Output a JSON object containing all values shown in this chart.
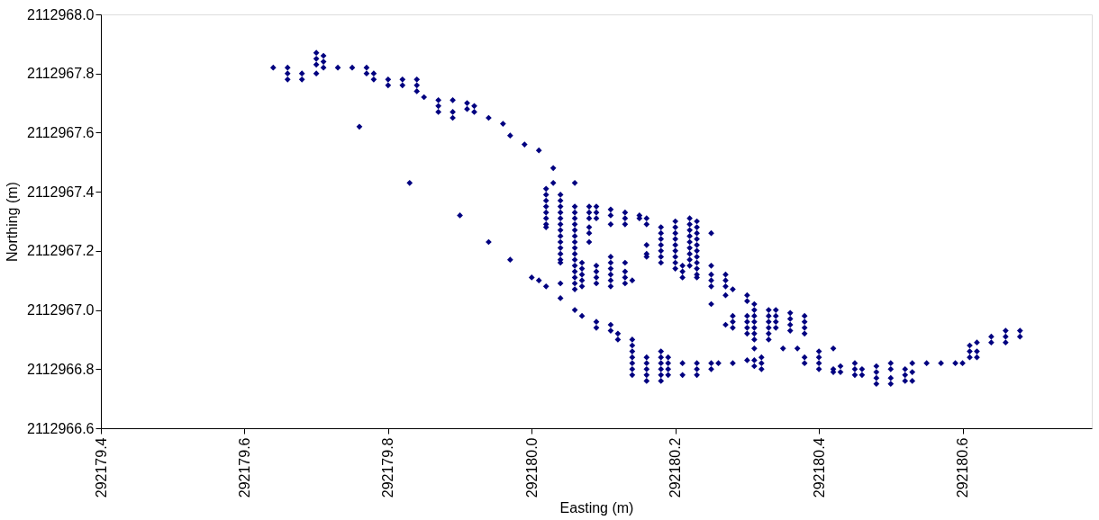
{
  "chart_data": {
    "type": "scatter",
    "xlabel": "Easting (m)",
    "ylabel": "Northing (m)",
    "xlim": [
      292179.4,
      292180.78
    ],
    "xticks": [
      292179.4,
      292179.6,
      292179.8,
      {
        "value": 292180,
        "label": "292180.0"
      },
      292180.2,
      292180.4,
      292180.6
    ],
    "ylim": [
      2112966.6,
      2112968.0
    ],
    "yticks": [
      {
        "value": 2112966.6,
        "label": "2112966.6"
      },
      {
        "value": 2112966.8,
        "label": "2112966.8"
      },
      {
        "value": 2112967,
        "label": "2112967.0"
      },
      {
        "value": 2112967.2,
        "label": "2112967.2"
      },
      {
        "value": 2112967.4,
        "label": "2112967.4"
      },
      {
        "value": 2112967.6,
        "label": "2112967.6"
      },
      {
        "value": 2112967.8,
        "label": "2112967.8"
      },
      {
        "value": 2112968,
        "label": "2112968.0"
      }
    ],
    "grid": false,
    "marker": "diamond",
    "series": [
      {
        "color": "#000080",
        "x": [
          292179.64,
          292179.66,
          292179.66,
          292179.66,
          292179.68,
          292179.68,
          292179.7,
          292179.7,
          292179.7,
          292179.7,
          292179.71,
          292179.71,
          292179.71,
          292179.73,
          292179.75,
          292179.76,
          292179.77,
          292179.77,
          292179.78,
          292179.78,
          292179.8,
          292179.8,
          292179.82,
          292179.82,
          292179.83,
          292179.84,
          292179.84,
          292179.84,
          292179.85,
          292179.87,
          292179.87,
          292179.87,
          292179.89,
          292179.89,
          292179.89,
          292179.9,
          292179.91,
          292179.91,
          292179.92,
          292179.92,
          292179.94,
          292179.94,
          292179.96,
          292179.97,
          292179.97,
          292179.99,
          292180.0,
          292180.01,
          292180.01,
          292180.02,
          292180.02,
          292180.02,
          292180.02,
          292180.02,
          292180.02,
          292180.02,
          292180.02,
          292180.02,
          292180.03,
          292180.03,
          292180.04,
          292180.04,
          292180.04,
          292180.04,
          292180.04,
          292180.04,
          292180.04,
          292180.04,
          292180.04,
          292180.04,
          292180.04,
          292180.04,
          292180.04,
          292180.04,
          292180.04,
          292180.06,
          292180.06,
          292180.06,
          292180.06,
          292180.06,
          292180.06,
          292180.06,
          292180.06,
          292180.06,
          292180.06,
          292180.06,
          292180.06,
          292180.06,
          292180.06,
          292180.06,
          292180.06,
          292180.06,
          292180.07,
          292180.07,
          292180.07,
          292180.07,
          292180.07,
          292180.07,
          292180.08,
          292180.08,
          292180.08,
          292180.08,
          292180.08,
          292180.08,
          292180.09,
          292180.09,
          292180.09,
          292180.09,
          292180.09,
          292180.09,
          292180.09,
          292180.09,
          292180.09,
          292180.11,
          292180.11,
          292180.11,
          292180.11,
          292180.11,
          292180.11,
          292180.11,
          292180.11,
          292180.11,
          292180.11,
          292180.11,
          292180.12,
          292180.12,
          292180.13,
          292180.13,
          292180.13,
          292180.13,
          292180.13,
          292180.13,
          292180.13,
          292180.14,
          292180.14,
          292180.14,
          292180.14,
          292180.14,
          292180.14,
          292180.14,
          292180.14,
          292180.15,
          292180.15,
          292180.16,
          292180.16,
          292180.16,
          292180.16,
          292180.16,
          292180.16,
          292180.16,
          292180.16,
          292180.16,
          292180.16,
          292180.18,
          292180.18,
          292180.18,
          292180.18,
          292180.18,
          292180.18,
          292180.18,
          292180.18,
          292180.18,
          292180.18,
          292180.18,
          292180.18,
          292180.18,
          292180.19,
          292180.19,
          292180.19,
          292180.19,
          292180.2,
          292180.2,
          292180.2,
          292180.2,
          292180.2,
          292180.2,
          292180.2,
          292180.2,
          292180.2,
          292180.21,
          292180.21,
          292180.21,
          292180.21,
          292180.21,
          292180.22,
          292180.22,
          292180.22,
          292180.22,
          292180.22,
          292180.22,
          292180.22,
          292180.22,
          292180.22,
          292180.23,
          292180.23,
          292180.23,
          292180.23,
          292180.23,
          292180.23,
          292180.23,
          292180.23,
          292180.23,
          292180.23,
          292180.23,
          292180.23,
          292180.23,
          292180.23,
          292180.25,
          292180.25,
          292180.25,
          292180.25,
          292180.25,
          292180.25,
          292180.25,
          292180.25,
          292180.26,
          292180.27,
          292180.27,
          292180.27,
          292180.27,
          292180.27,
          292180.28,
          292180.28,
          292180.28,
          292180.28,
          292180.28,
          292180.3,
          292180.3,
          292180.3,
          292180.3,
          292180.3,
          292180.3,
          292180.3,
          292180.31,
          292180.31,
          292180.31,
          292180.31,
          292180.31,
          292180.31,
          292180.31,
          292180.31,
          292180.31,
          292180.31,
          292180.32,
          292180.32,
          292180.32,
          292180.33,
          292180.33,
          292180.33,
          292180.33,
          292180.33,
          292180.33,
          292180.34,
          292180.34,
          292180.34,
          292180.34,
          292180.35,
          292180.36,
          292180.36,
          292180.36,
          292180.36,
          292180.37,
          292180.38,
          292180.38,
          292180.38,
          292180.38,
          292180.38,
          292180.38,
          292180.4,
          292180.4,
          292180.4,
          292180.4,
          292180.42,
          292180.42,
          292180.42,
          292180.43,
          292180.43,
          292180.45,
          292180.45,
          292180.45,
          292180.46,
          292180.46,
          292180.48,
          292180.48,
          292180.48,
          292180.48,
          292180.5,
          292180.5,
          292180.5,
          292180.5,
          292180.52,
          292180.52,
          292180.52,
          292180.53,
          292180.53,
          292180.53,
          292180.55,
          292180.57,
          292180.59,
          292180.6,
          292180.61,
          292180.61,
          292180.61,
          292180.62,
          292180.62,
          292180.62,
          292180.64,
          292180.64,
          292180.66,
          292180.66,
          292180.66,
          292180.68,
          292180.68
        ],
        "values": [
          2112967.82,
          2112967.82,
          2112967.8,
          2112967.78,
          2112967.8,
          2112967.78,
          2112967.87,
          2112967.85,
          2112967.83,
          2112967.8,
          2112967.86,
          2112967.84,
          2112967.82,
          2112967.82,
          2112967.82,
          2112967.62,
          2112967.82,
          2112967.8,
          2112967.8,
          2112967.78,
          2112967.78,
          2112967.76,
          2112967.78,
          2112967.76,
          2112967.43,
          2112967.78,
          2112967.76,
          2112967.74,
          2112967.72,
          2112967.71,
          2112967.69,
          2112967.67,
          2112967.71,
          2112967.67,
          2112967.65,
          2112967.32,
          2112967.7,
          2112967.68,
          2112967.69,
          2112967.67,
          2112967.65,
          2112967.23,
          2112967.63,
          2112967.59,
          2112967.17,
          2112967.56,
          2112967.11,
          2112967.54,
          2112967.1,
          2112967.41,
          2112967.39,
          2112967.37,
          2112967.35,
          2112967.33,
          2112967.31,
          2112967.29,
          2112967.28,
          2112967.08,
          2112967.48,
          2112967.43,
          2112967.39,
          2112967.37,
          2112967.35,
          2112967.33,
          2112967.31,
          2112967.29,
          2112967.27,
          2112967.25,
          2112967.23,
          2112967.21,
          2112967.19,
          2112967.17,
          2112967.16,
          2112967.09,
          2112967.04,
          2112967.43,
          2112967.35,
          2112967.33,
          2112967.31,
          2112967.29,
          2112967.27,
          2112967.25,
          2112967.23,
          2112967.21,
          2112967.19,
          2112967.17,
          2112967.15,
          2112967.13,
          2112967.11,
          2112967.09,
          2112967.07,
          2112967.0,
          2112967.16,
          2112967.14,
          2112967.12,
          2112967.1,
          2112967.08,
          2112966.98,
          2112967.35,
          2112967.33,
          2112967.31,
          2112967.28,
          2112967.26,
          2112967.23,
          2112967.35,
          2112967.33,
          2112967.31,
          2112967.15,
          2112967.13,
          2112967.11,
          2112967.09,
          2112966.96,
          2112966.94,
          2112967.34,
          2112967.32,
          2112967.29,
          2112967.18,
          2112967.16,
          2112967.14,
          2112967.12,
          2112967.1,
          2112967.08,
          2112966.95,
          2112966.93,
          2112966.92,
          2112966.9,
          2112967.33,
          2112967.31,
          2112967.29,
          2112967.16,
          2112967.13,
          2112967.11,
          2112967.09,
          2112967.1,
          2112966.9,
          2112966.88,
          2112966.86,
          2112966.84,
          2112966.82,
          2112966.8,
          2112966.78,
          2112967.32,
          2112967.31,
          2112967.31,
          2112967.29,
          2112967.22,
          2112967.19,
          2112967.18,
          2112966.84,
          2112966.82,
          2112966.8,
          2112966.78,
          2112966.76,
          2112967.28,
          2112967.26,
          2112967.24,
          2112967.22,
          2112967.2,
          2112967.18,
          2112967.16,
          2112966.86,
          2112966.84,
          2112966.82,
          2112966.8,
          2112966.78,
          2112966.76,
          2112966.84,
          2112966.82,
          2112966.8,
          2112966.78,
          2112967.3,
          2112967.28,
          2112967.26,
          2112967.24,
          2112967.22,
          2112967.2,
          2112967.18,
          2112967.16,
          2112967.14,
          2112967.15,
          2112967.13,
          2112967.11,
          2112966.82,
          2112966.78,
          2112967.31,
          2112967.29,
          2112967.27,
          2112967.25,
          2112967.23,
          2112967.21,
          2112967.19,
          2112967.17,
          2112967.15,
          2112967.3,
          2112967.28,
          2112967.26,
          2112967.24,
          2112967.22,
          2112967.2,
          2112967.18,
          2112967.16,
          2112967.14,
          2112967.12,
          2112967.11,
          2112966.82,
          2112966.8,
          2112966.78,
          2112967.26,
          2112967.15,
          2112967.12,
          2112967.1,
          2112967.08,
          2112967.02,
          2112966.82,
          2112966.8,
          2112966.82,
          2112967.12,
          2112967.1,
          2112967.08,
          2112967.05,
          2112966.95,
          2112967.07,
          2112966.98,
          2112966.96,
          2112966.94,
          2112966.82,
          2112967.05,
          2112967.03,
          2112966.98,
          2112966.96,
          2112966.94,
          2112966.92,
          2112966.83,
          2112967.02,
          2112967.0,
          2112966.98,
          2112966.96,
          2112966.94,
          2112966.92,
          2112966.9,
          2112966.87,
          2112966.83,
          2112966.81,
          2112966.84,
          2112966.82,
          2112966.8,
          2112967.0,
          2112966.98,
          2112966.96,
          2112966.94,
          2112966.92,
          2112966.9,
          2112967.0,
          2112966.98,
          2112966.96,
          2112966.94,
          2112966.87,
          2112966.99,
          2112966.97,
          2112966.95,
          2112966.93,
          2112966.87,
          2112966.98,
          2112966.96,
          2112966.94,
          2112966.92,
          2112966.84,
          2112966.82,
          2112966.86,
          2112966.84,
          2112966.82,
          2112966.8,
          2112966.87,
          2112966.8,
          2112966.79,
          2112966.81,
          2112966.79,
          2112966.82,
          2112966.8,
          2112966.78,
          2112966.8,
          2112966.78,
          2112966.81,
          2112966.79,
          2112966.77,
          2112966.75,
          2112966.82,
          2112966.8,
          2112966.77,
          2112966.75,
          2112966.8,
          2112966.78,
          2112966.76,
          2112966.82,
          2112966.79,
          2112966.76,
          2112966.82,
          2112966.82,
          2112966.82,
          2112966.82,
          2112966.88,
          2112966.86,
          2112966.84,
          2112966.89,
          2112966.86,
          2112966.84,
          2112966.91,
          2112966.89,
          2112966.93,
          2112966.91,
          2112966.89,
          2112966.93,
          2112966.91
        ]
      }
    ]
  }
}
